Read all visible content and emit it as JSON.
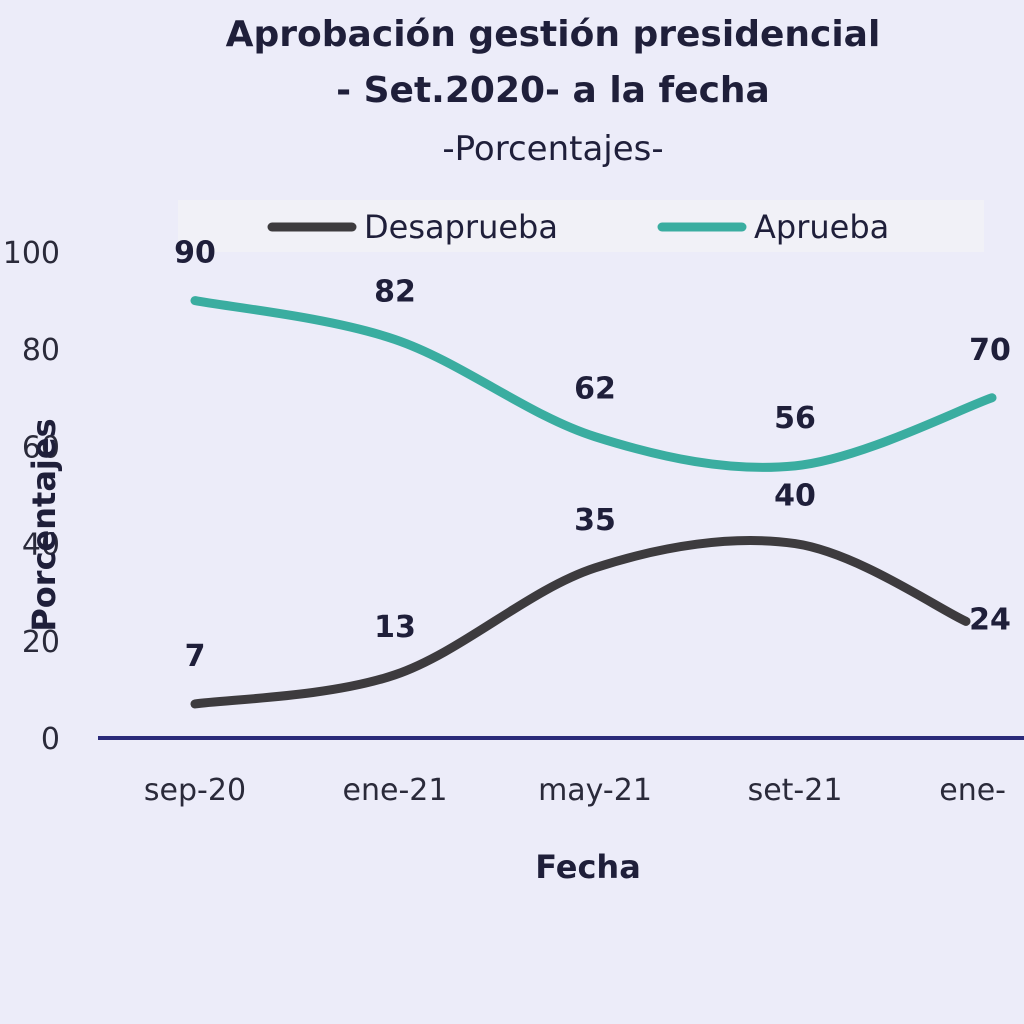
{
  "chart_data": {
    "type": "line",
    "title_line1": "Aprobación gestión presidencial",
    "title_line2": "- Set.2020- a la fecha",
    "subtitle": "-Porcentajes-",
    "xlabel": "Fecha",
    "ylabel": "Porcentajes",
    "categories": [
      "sep-20",
      "ene-21",
      "may-21",
      "set-21",
      "ene-"
    ],
    "ylim": [
      0,
      100
    ],
    "yticks": [
      0,
      20,
      40,
      60,
      80,
      100
    ],
    "legend_position": "top",
    "grid": false,
    "series": [
      {
        "name": "Desaprueba",
        "color": "#3d3b3e",
        "values": [
          7,
          13,
          35,
          40,
          24
        ]
      },
      {
        "name": "Aprueba",
        "color": "#3aada0",
        "values": [
          90,
          82,
          62,
          56,
          70
        ]
      }
    ],
    "axis_color": "#2a2a7a"
  }
}
